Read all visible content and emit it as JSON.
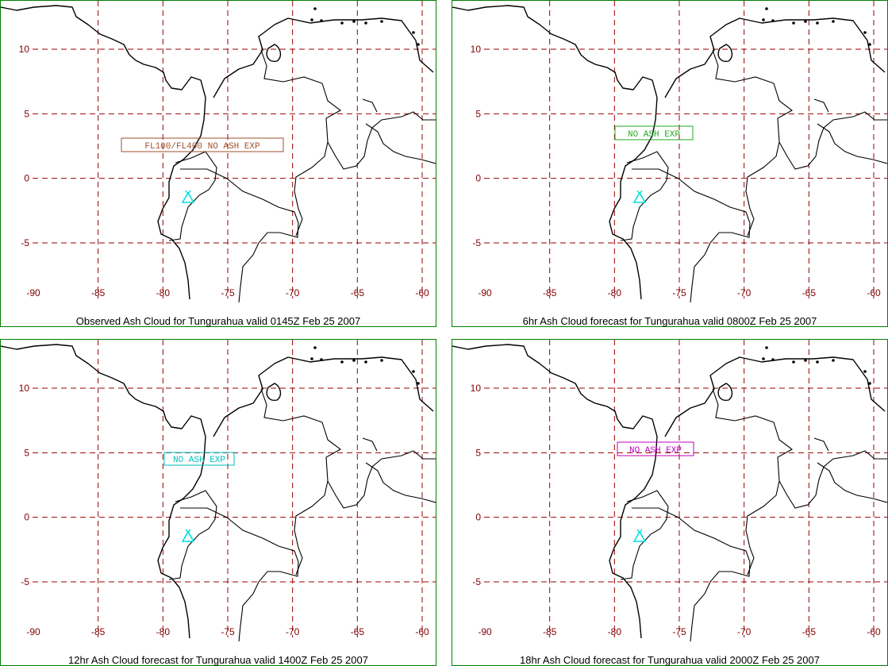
{
  "map": {
    "lon_ticks": [
      "-90",
      "-85",
      "-80",
      "-75",
      "-70",
      "-65",
      "-60"
    ],
    "lat_ticks": [
      "10",
      "5",
      "0",
      "-5"
    ],
    "grid_color": "#990000",
    "frame_color": "#008000",
    "volcano_color": "#00e0e0"
  },
  "panels": [
    {
      "caption": "Observed Ash Cloud for Tungurahua valid 0145Z Feb 25 2007",
      "label": "FL100/FL400 NO ASH EXP",
      "label_color": "#a0522d"
    },
    {
      "caption": "6hr Ash Cloud forecast for Tungurahua valid 0800Z Feb 25 2007",
      "label": "NO ASH EXP",
      "label_color": "#22aa22"
    },
    {
      "caption": "12hr Ash Cloud forecast for Tungurahua valid 1400Z Feb 25 2007",
      "label": "NO ASH EXP",
      "label_color": "#00bfbf"
    },
    {
      "caption": "18hr Ash Cloud forecast for Tungurahua valid 2000Z Feb 25 2007",
      "label": "NO ASH EXP",
      "label_color": "#c000c0"
    }
  ]
}
